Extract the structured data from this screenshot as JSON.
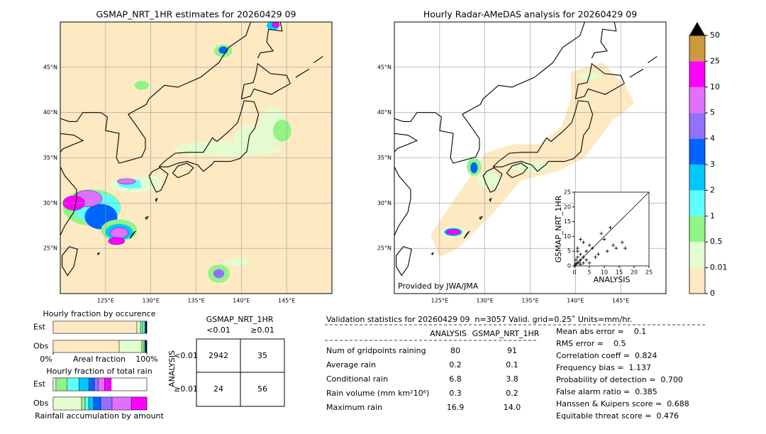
{
  "maps": [
    {
      "title": "GSMAP_NRT_1HR estimates for 20260429 09",
      "xlim": [
        120,
        150
      ],
      "ylim": [
        20,
        50
      ],
      "lon_ticks": [
        {
          "value": 125,
          "label": "125°E"
        },
        {
          "value": 130,
          "label": "130°E"
        },
        {
          "value": 135,
          "label": "135°E"
        },
        {
          "value": 140,
          "label": "140°E"
        },
        {
          "value": 145,
          "label": "145°E"
        }
      ],
      "lat_ticks": [
        {
          "value": 45,
          "label": "45°N"
        },
        {
          "value": 40,
          "label": "40°N"
        },
        {
          "value": 35,
          "label": "35°N"
        },
        {
          "value": 30,
          "label": "30°N"
        },
        {
          "value": 25,
          "label": "25°N"
        }
      ]
    },
    {
      "title": "Hourly Radar-AMeDAS analysis for 20260429 09",
      "xlim": [
        120,
        150
      ],
      "ylim": [
        20,
        50
      ],
      "lon_ticks": [
        {
          "value": 125,
          "label": "125°E"
        },
        {
          "value": 130,
          "label": "130°E"
        },
        {
          "value": 135,
          "label": "135°E"
        },
        {
          "value": 140,
          "label": "140°E"
        },
        {
          "value": 145,
          "label": "145°E"
        }
      ],
      "lat_ticks": [
        {
          "value": 45,
          "label": "45°N"
        },
        {
          "value": 40,
          "label": "40°N"
        },
        {
          "value": 35,
          "label": "35°N"
        },
        {
          "value": 30,
          "label": "30°N"
        },
        {
          "value": 25,
          "label": "25°N"
        }
      ],
      "credit": "Provided by JWA/JMA"
    }
  ],
  "colorbar": {
    "levels": [
      0,
      0.01,
      0.5,
      1,
      2,
      3,
      4,
      5,
      10,
      25,
      50
    ],
    "colors": [
      "#fde9c2",
      "#e4fdd0",
      "#90f586",
      "#60ffff",
      "#00c8ff",
      "#0064ff",
      "#9370ff",
      "#e070ff",
      "#ff00ff",
      "#cc9a3c"
    ],
    "extend_color": "#000000"
  },
  "chart_data": [
    {
      "type": "scatter",
      "xlabel": "ANALYSIS",
      "ylabel": "GSMAP_NRT_1HR",
      "x": [
        0.3,
        0.5,
        1,
        1,
        1.5,
        2,
        2,
        3,
        1,
        2,
        3,
        4,
        5,
        6,
        7,
        8,
        9,
        10,
        11,
        12,
        13,
        14,
        16,
        17,
        2,
        1,
        3,
        4,
        5,
        0.5
      ],
      "y": [
        0.3,
        2,
        1,
        3,
        1.2,
        0.5,
        2,
        1,
        5,
        4,
        8,
        5,
        7,
        6,
        3,
        4,
        11,
        9,
        5,
        13,
        7,
        6,
        8,
        6,
        9,
        6,
        3,
        2,
        1,
        0.8
      ],
      "xlim": [
        0,
        25
      ],
      "ylim": [
        0,
        25
      ],
      "xticks": [
        0,
        5,
        10,
        15,
        20,
        25
      ],
      "yticks": [
        0,
        5,
        10,
        15,
        20,
        25
      ],
      "color": "#000000"
    },
    {
      "type": "bar",
      "orientation": "horizontal",
      "stacked": true,
      "title": "Hourly fraction by occurence",
      "xlabel": "Areal fraction",
      "categories": [
        "Est",
        "Obs"
      ],
      "xlim": [
        0,
        100
      ],
      "xticks": [
        {
          "value": 0,
          "label": "0%"
        },
        {
          "value": 100,
          "label": "100%"
        }
      ],
      "series": [
        {
          "color": "#fde9c2",
          "values": [
            89.4,
            70.5
          ]
        },
        {
          "color": "#e4fdd0",
          "values": [
            3.8,
            24.2
          ]
        },
        {
          "color": "#90f586",
          "values": [
            2.3,
            2.3
          ]
        },
        {
          "color": "#60ffff",
          "values": [
            2.3,
            1.0
          ]
        },
        {
          "color": "#00c8ff",
          "values": [
            0.8,
            0.6
          ]
        },
        {
          "color": "#0064ff",
          "values": [
            0.5,
            0.5
          ]
        },
        {
          "color": "#9370ff",
          "values": [
            0.3,
            0.3
          ]
        },
        {
          "color": "#e070ff",
          "values": [
            0.4,
            0.4
          ]
        },
        {
          "color": "#ff00ff",
          "values": [
            0.2,
            0.2
          ]
        },
        {
          "color": "#cc9a3c",
          "values": [
            0,
            0
          ]
        }
      ]
    },
    {
      "type": "bar",
      "orientation": "horizontal",
      "stacked": true,
      "title": "Hourly fraction of total rain",
      "xlabel": "Rainfall accumulation by amount",
      "categories": [
        "Est",
        "Obs"
      ],
      "xlim": [
        0,
        100
      ],
      "series": [
        {
          "color": "#fde9c2",
          "values": [
            0,
            0
          ]
        },
        {
          "color": "#e4fdd0",
          "values": [
            3.0,
            30.3
          ]
        },
        {
          "color": "#90f586",
          "values": [
            12.0,
            3.8
          ]
        },
        {
          "color": "#60ffff",
          "values": [
            12.5,
            3.8
          ]
        },
        {
          "color": "#00c8ff",
          "values": [
            10.5,
            5.3
          ]
        },
        {
          "color": "#0064ff",
          "values": [
            6.0,
            7.6
          ]
        },
        {
          "color": "#9370ff",
          "values": [
            4.0,
            12.1
          ]
        },
        {
          "color": "#e070ff",
          "values": [
            7.0,
            20.5
          ]
        },
        {
          "color": "#ff00ff",
          "values": [
            7.0,
            16.6
          ]
        },
        {
          "color": "#cc9a3c",
          "values": [
            0,
            0
          ]
        }
      ]
    }
  ],
  "contingency": {
    "title": "GSMAP_NRT_1HR",
    "col_labels": [
      "<0.01",
      "≥0.01"
    ],
    "row_title": "ANALYSIS",
    "row_labels": [
      "<0.01",
      "≥0.01"
    ],
    "cells": [
      [
        "2942",
        "35"
      ],
      [
        "24",
        "56"
      ]
    ]
  },
  "stats": {
    "title": "Validation statistics for 20260429 09  n=3057 Valid. grid=0.25˚ Units=mm/hr.",
    "columns": [
      "ANALYSIS",
      "GSMAP_NRT_1HR"
    ],
    "rows": [
      {
        "label": "Num of gridpoints raining",
        "values": [
          "80",
          "91"
        ]
      },
      {
        "label": "Average rain",
        "values": [
          "0.2",
          "0.1"
        ]
      },
      {
        "label": "Conditional rain",
        "values": [
          "6.8",
          "3.8"
        ]
      },
      {
        "label": "Rain volume (mm km²10⁶)",
        "values": [
          "0.3",
          "0.2"
        ]
      },
      {
        "label": "Maximum rain",
        "values": [
          "16.9",
          "14.0"
        ]
      }
    ],
    "scores": [
      "Mean abs error =    0.1",
      "RMS error =    0.5",
      "Correlation coeff =  0.824",
      "Frequency bias =  1.137",
      "Probability of detection =  0.700",
      "False alarm ratio =  0.385",
      "Hanssen & Kuipers score =  0.688",
      "Equitable threat score =  0.476"
    ]
  }
}
